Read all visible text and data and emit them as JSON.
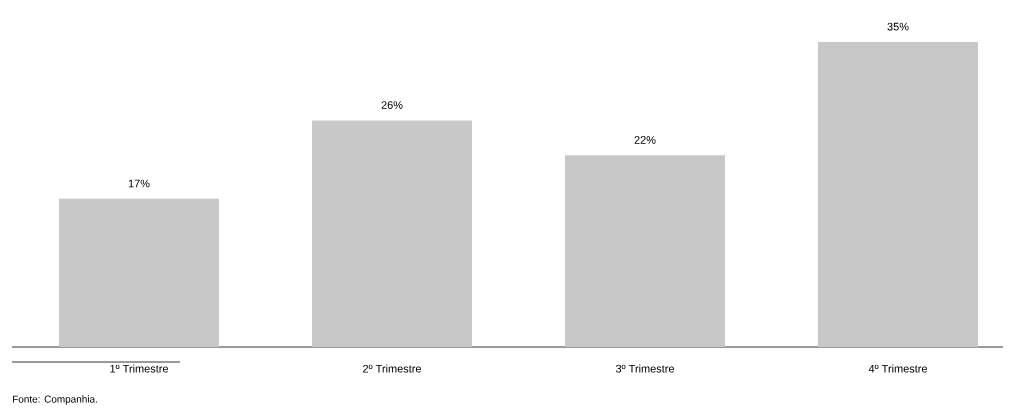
{
  "chart_data": {
    "type": "bar",
    "categories": [
      "1º Trimestre",
      "2º Trimestre",
      "3º Trimestre",
      "4º Trimestre"
    ],
    "values": [
      17,
      26,
      22,
      35
    ],
    "value_labels": [
      "17%",
      "26%",
      "22%",
      "35%"
    ],
    "color": "#c8c8c8",
    "annotations": [
      "Fonte: Companhia."
    ]
  }
}
